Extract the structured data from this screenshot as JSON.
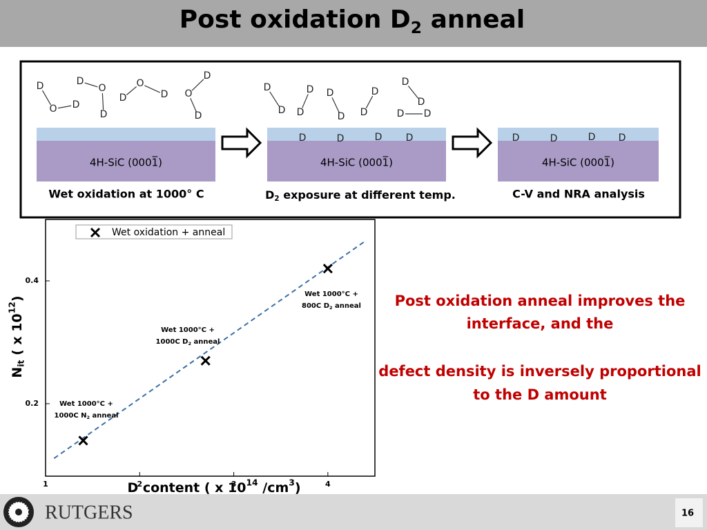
{
  "header": {
    "title": "Post oxidation D",
    "title_sub": "2",
    "title_end": " anneal"
  },
  "diagram": {
    "atom_d": "D",
    "atom_o": "O",
    "substrate": "4H-SiC (0001̅)",
    "captions": [
      {
        "text": "Wet oxidation at 1000° C"
      },
      {
        "text": "D",
        "sub": "2",
        "end": " exposure at different temp."
      },
      {
        "text": "C-V and NRA analysis"
      }
    ]
  },
  "chart_data": {
    "type": "scatter",
    "series": [
      {
        "name": "Wet oxidation + anneal",
        "color": "#000000",
        "x": [
          1.4,
          2.7,
          4.0
        ],
        "values": [
          0.14,
          0.27,
          0.42
        ]
      }
    ],
    "fit": {
      "color": "#3a6ea5",
      "x": [
        1.09,
        4.39
      ],
      "values": [
        0.111,
        0.464
      ]
    },
    "xlim": [
      1,
      4.5
    ],
    "ylim": [
      0.082,
      0.5
    ],
    "xticks": [
      1,
      2,
      3,
      4
    ],
    "yticks": [
      0.2,
      0.4
    ],
    "xlabel": {
      "text": "D content ( x 10",
      "sup": "14",
      "mid": " /cm",
      "sup2": "3",
      "end": ")"
    },
    "ylabel": {
      "text": "N",
      "sub": "it",
      "mid": " ( x 10",
      "sup": "12",
      "end": ")"
    },
    "legend": "upper left",
    "annotations": [
      {
        "line1": "Wet 1000°C +",
        "line2": "1000C N",
        "sub": "2",
        "end": " anneal"
      },
      {
        "line1": "Wet 1000°C +",
        "line2": "1000C D",
        "sub": "2",
        "end": " anneal"
      },
      {
        "line1": "Wet 1000°C +",
        "line2": "800C D",
        "sub": "2",
        "end": " anneal"
      }
    ]
  },
  "conclusion": [
    "Post oxidation anneal improves the",
    "interface, and the",
    "defect density is inversely proportional",
    "to the D amount"
  ],
  "footer": {
    "logo": "RUTGERS",
    "page": "16"
  }
}
